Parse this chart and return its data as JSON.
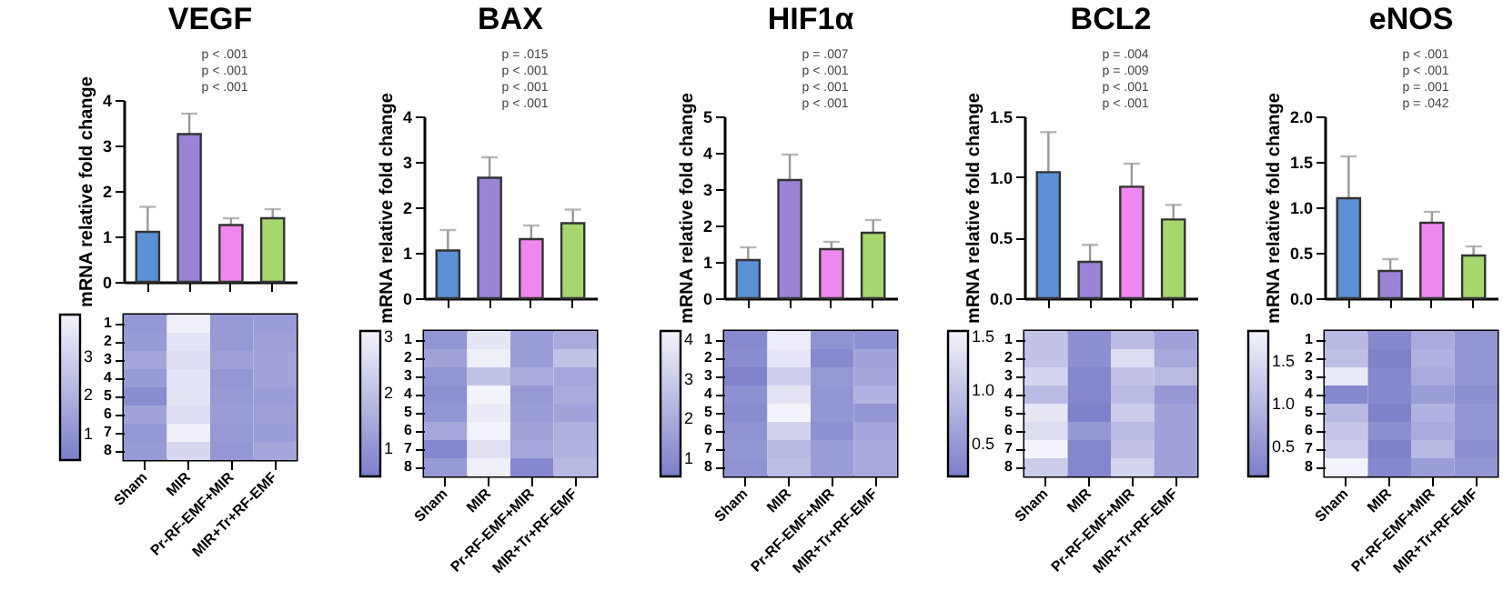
{
  "chart_data": [
    {
      "type": "bar",
      "title": "VEGF",
      "ylabel": "mRNA relative fold change",
      "categories": [
        null,
        null,
        null,
        null
      ],
      "values": [
        1.1,
        3.25,
        1.25,
        1.4
      ],
      "errors": [
        0.55,
        0.45,
        0.15,
        0.2
      ],
      "colors": [
        "#5b8fd6",
        "#9b84d6",
        "#ee88ee",
        "#a6d66e"
      ],
      "ylim": [
        0,
        4
      ],
      "yticks": [
        0,
        1,
        2,
        3,
        4
      ],
      "tick_labels": "y",
      "annotations": [
        "p < .001",
        "p < .001",
        "p < .001"
      ]
    },
    {
      "type": "heatmap",
      "categories": [
        "Sham",
        "MIR",
        "Pr-RF-EMF+MIR",
        "MIR+Tr+RF-EMF"
      ],
      "y_categories": [
        "1",
        "2",
        "3",
        "4",
        "5",
        "6",
        "7",
        "8"
      ],
      "cells": [
        [
          1.1,
          4.0,
          1.2,
          1.3
        ],
        [
          1.2,
          3.6,
          1.2,
          1.4
        ],
        [
          1.6,
          3.4,
          1.4,
          1.5
        ],
        [
          1.2,
          3.6,
          1.1,
          1.5
        ],
        [
          0.8,
          3.6,
          1.2,
          1.3
        ],
        [
          1.5,
          3.4,
          1.3,
          1.4
        ],
        [
          1.1,
          4.0,
          1.2,
          1.3
        ],
        [
          1.2,
          3.2,
          1.1,
          1.6
        ]
      ],
      "clim": [
        0.3,
        4.1
      ],
      "cticks": [
        1,
        2,
        3
      ]
    },
    {
      "type": "bar",
      "title": "BAX",
      "ylabel": "mRNA relative fold change",
      "categories": [
        null,
        null,
        null,
        null
      ],
      "values": [
        1.05,
        2.65,
        1.3,
        1.65
      ],
      "errors": [
        0.45,
        0.45,
        0.3,
        0.3
      ],
      "colors": [
        "#5b8fd6",
        "#9b84d6",
        "#ee88ee",
        "#a6d66e"
      ],
      "ylim": [
        0,
        4
      ],
      "yticks": [
        0,
        1,
        2,
        3,
        4
      ],
      "tick_labels": "y",
      "annotations": [
        "p = .015",
        "p < .001",
        "p < .001",
        "p < .001"
      ]
    },
    {
      "type": "heatmap",
      "categories": [
        "Sham",
        "MIR",
        "Pr-RF-EMF+MIR",
        "MIR+Tr+RF-EMF"
      ],
      "y_categories": [
        "1",
        "2",
        "3",
        "4",
        "5",
        "6",
        "7",
        "8"
      ],
      "cells": [
        [
          1.0,
          2.8,
          1.2,
          1.5
        ],
        [
          1.3,
          3.0,
          1.2,
          2.0
        ],
        [
          1.0,
          2.0,
          1.5,
          1.4
        ],
        [
          0.9,
          3.1,
          1.1,
          1.5
        ],
        [
          1.0,
          2.9,
          1.2,
          1.3
        ],
        [
          1.4,
          3.1,
          1.3,
          1.6
        ],
        [
          0.7,
          2.7,
          1.4,
          1.7
        ],
        [
          1.1,
          3.0,
          0.7,
          1.8
        ]
      ],
      "clim": [
        0.5,
        3.1
      ],
      "cticks": [
        1,
        2,
        3
      ]
    },
    {
      "type": "bar",
      "title": "HIF1α",
      "ylabel": "mRNA relative fold change",
      "categories": [
        null,
        null,
        null,
        null
      ],
      "values": [
        1.05,
        3.25,
        1.35,
        1.8
      ],
      "errors": [
        0.35,
        0.7,
        0.2,
        0.35
      ],
      "colors": [
        "#5b8fd6",
        "#9b84d6",
        "#ee88ee",
        "#a6d66e"
      ],
      "ylim": [
        0,
        5
      ],
      "yticks": [
        0,
        1,
        2,
        3,
        4,
        5
      ],
      "tick_labels": "y",
      "annotations": [
        "p = .007",
        "p < .001",
        "p < .001",
        "p < .001"
      ]
    },
    {
      "type": "heatmap",
      "categories": [
        "Sham",
        "MIR",
        "Pr-RF-EMF+MIR",
        "MIR+Tr+RF-EMF"
      ],
      "y_categories": [
        "1",
        "2",
        "3",
        "4",
        "5",
        "6",
        "7",
        "8"
      ],
      "cells": [
        [
          0.9,
          4.0,
          1.2,
          1.1
        ],
        [
          1.0,
          3.8,
          0.9,
          1.7
        ],
        [
          0.7,
          3.0,
          1.4,
          1.8
        ],
        [
          1.1,
          3.7,
          1.3,
          2.2
        ],
        [
          1.0,
          4.2,
          1.3,
          1.3
        ],
        [
          1.2,
          3.2,
          1.1,
          1.8
        ],
        [
          1.3,
          2.4,
          1.5,
          1.9
        ],
        [
          1.2,
          2.5,
          1.5,
          1.9
        ]
      ],
      "clim": [
        0.55,
        4.2
      ],
      "cticks": [
        1,
        2,
        3,
        4
      ]
    },
    {
      "type": "bar",
      "title": "BCL2",
      "ylabel": "mRNA relative fold change",
      "categories": [
        null,
        null,
        null,
        null
      ],
      "values": [
        1.04,
        0.3,
        0.92,
        0.65
      ],
      "errors": [
        0.33,
        0.14,
        0.19,
        0.12
      ],
      "colors": [
        "#5b8fd6",
        "#9b84d6",
        "#ee88ee",
        "#a6d66e"
      ],
      "ylim": [
        0,
        1.5
      ],
      "yticks": [
        {
          "value": 0,
          "label": "0.0"
        },
        0.5,
        {
          "value": 1,
          "label": "1.0"
        },
        1.5
      ],
      "tick_labels": "y",
      "annotations": [
        "p = .004",
        "p = .009",
        "p < .001",
        "p < .001"
      ]
    },
    {
      "type": "heatmap",
      "categories": [
        "Sham",
        "MIR",
        "Pr-RF-EMF+MIR",
        "MIR+Tr+RF-EMF"
      ],
      "y_categories": [
        "1",
        "2",
        "3",
        "4",
        "5",
        "6",
        "7",
        "8"
      ],
      "cells": [
        [
          1.0,
          0.4,
          0.9,
          0.6
        ],
        [
          1.0,
          0.4,
          1.3,
          0.7
        ],
        [
          1.2,
          0.3,
          1.0,
          0.9
        ],
        [
          0.9,
          0.3,
          0.9,
          0.5
        ],
        [
          1.4,
          0.25,
          1.1,
          0.6
        ],
        [
          1.3,
          0.5,
          0.9,
          0.6
        ],
        [
          1.55,
          0.3,
          1.0,
          0.6
        ],
        [
          1.1,
          0.3,
          1.2,
          0.6
        ]
      ],
      "clim": [
        0.2,
        1.55
      ],
      "cticks": [
        0.5,
        {
          "value": 1,
          "label": "1.0"
        },
        1.5
      ]
    },
    {
      "type": "bar",
      "title": "eNOS",
      "ylabel": "mRNA relative fold change",
      "categories": [
        null,
        null,
        null,
        null
      ],
      "values": [
        1.1,
        0.3,
        0.83,
        0.47
      ],
      "errors": [
        0.46,
        0.13,
        0.12,
        0.1
      ],
      "colors": [
        "#5b8fd6",
        "#9b84d6",
        "#ee88ee",
        "#a6d66e"
      ],
      "ylim": [
        0,
        2
      ],
      "yticks": [
        {
          "value": 0,
          "label": "0.0"
        },
        0.5,
        {
          "value": 1,
          "label": "1.0"
        },
        1.5,
        {
          "value": 2,
          "label": "2.0"
        }
      ],
      "tick_labels": "y",
      "annotations": [
        "p < .001",
        "p < .001",
        "p = .001",
        "p = .042"
      ]
    },
    {
      "type": "heatmap",
      "categories": [
        "Sham",
        "MIR",
        "Pr-RF-EMF+MIR",
        "MIR+Tr+RF-EMF"
      ],
      "y_categories": [
        "1",
        "2",
        "3",
        "4",
        "5",
        "6",
        "7",
        "8"
      ],
      "cells": [
        [
          1.0,
          0.3,
          0.8,
          0.5
        ],
        [
          1.1,
          0.2,
          0.9,
          0.5
        ],
        [
          1.7,
          0.3,
          0.8,
          0.5
        ],
        [
          0.3,
          0.3,
          0.6,
          0.4
        ],
        [
          1.0,
          0.2,
          0.9,
          0.5
        ],
        [
          1.2,
          0.4,
          0.8,
          0.5
        ],
        [
          1.3,
          0.2,
          1.0,
          0.4
        ],
        [
          1.85,
          0.3,
          0.6,
          0.5
        ]
      ],
      "clim": [
        0.15,
        1.85
      ],
      "cticks": [
        0.5,
        {
          "value": 1,
          "label": "1.0"
        },
        1.5
      ]
    }
  ]
}
